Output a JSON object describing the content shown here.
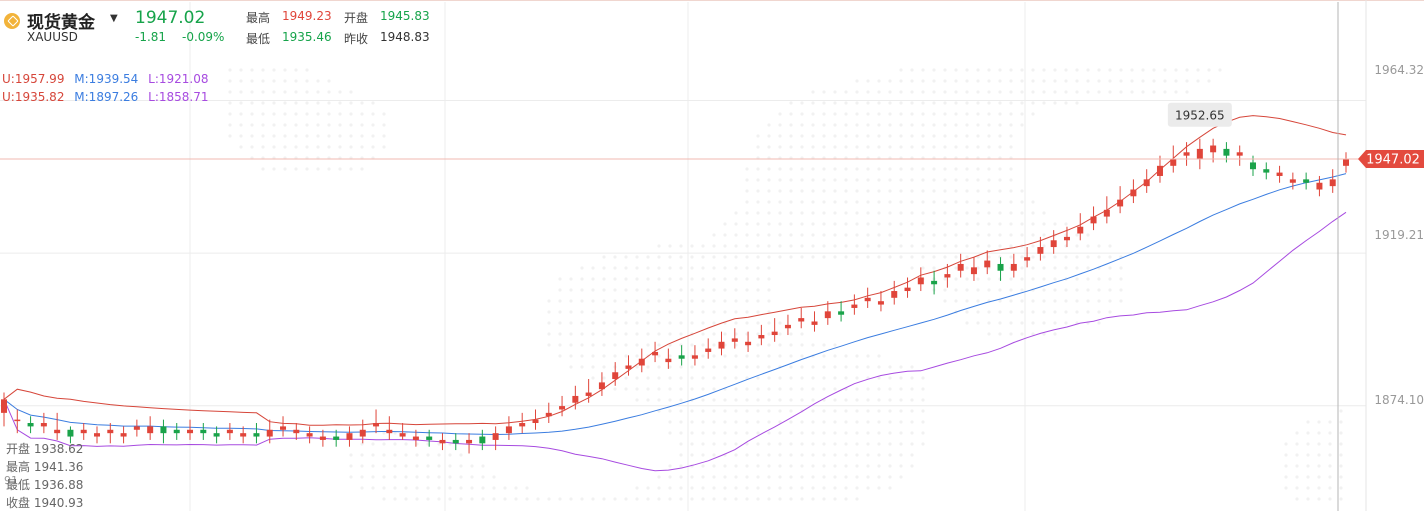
{
  "header": {
    "name": "现货黄金",
    "symbol": "XAUUSD",
    "price": "1947.02",
    "change": "-1.81",
    "change_pct": "-0.09%",
    "labels": {
      "high": "最高",
      "open": "开盘",
      "low": "最低",
      "prev_close": "昨收"
    },
    "high": "1949.23",
    "open": "1945.83",
    "low": "1935.46",
    "prev_close": "1948.83"
  },
  "boll_lines": [
    {
      "u": "U:1957.99",
      "m": "M:1939.54",
      "l": "L:1921.08"
    },
    {
      "u": "U:1935.82",
      "m": "M:1897.26",
      "l": "L:1858.71"
    }
  ],
  "ohlc_panel": {
    "open": "开盘 1938.62",
    "high": "最高 1941.36",
    "low": "最低 1936.88",
    "close": "收盘 1940.93",
    "extra": "91"
  },
  "colors": {
    "up": "#e0453a",
    "down": "#1aa34a",
    "upper_band": "#d6463a",
    "mid": "#3b7de0",
    "lower_band": "#a74be0",
    "label_bg": "#e34a3e"
  },
  "chart_data": {
    "type": "candlestick",
    "y_ticks": [
      1964.32,
      1919.21,
      1874.1
    ],
    "y_tick_labels": [
      "1964.32",
      "1919.21",
      "1874.10"
    ],
    "ylim": [
      1843.0,
      1994.0
    ],
    "current_price": 1947.02,
    "current_price_label": "1947.02",
    "peak_label": "1952.65",
    "candles": [
      [
        1872,
        1876,
        1868,
        1878
      ],
      [
        1870,
        1870,
        1866,
        1873
      ],
      [
        1869,
        1868,
        1866,
        1871
      ],
      [
        1868,
        1869,
        1866,
        1872
      ],
      [
        1866,
        1867,
        1864,
        1872
      ],
      [
        1867,
        1865,
        1863,
        1868
      ],
      [
        1866,
        1867,
        1864,
        1869
      ],
      [
        1865,
        1866,
        1863,
        1868
      ],
      [
        1866,
        1867,
        1863,
        1869
      ],
      [
        1865,
        1866,
        1863,
        1868
      ],
      [
        1867,
        1868,
        1865,
        1870
      ],
      [
        1866,
        1868,
        1864,
        1871
      ],
      [
        1868,
        1866,
        1863,
        1870
      ],
      [
        1867,
        1866,
        1864,
        1869
      ],
      [
        1866,
        1867,
        1864,
        1870
      ],
      [
        1867,
        1866,
        1864,
        1869
      ],
      [
        1866,
        1865,
        1863,
        1868
      ],
      [
        1866,
        1867,
        1864,
        1869
      ],
      [
        1865,
        1866,
        1863,
        1868
      ],
      [
        1866,
        1865,
        1863,
        1869
      ],
      [
        1865,
        1867,
        1863,
        1870
      ],
      [
        1867,
        1868,
        1865,
        1871
      ],
      [
        1866,
        1867,
        1864,
        1869
      ],
      [
        1865,
        1866,
        1863,
        1868
      ],
      [
        1864,
        1865,
        1862,
        1867
      ],
      [
        1865,
        1864,
        1862,
        1867
      ],
      [
        1864,
        1866,
        1862,
        1868
      ],
      [
        1865,
        1867,
        1863,
        1870
      ],
      [
        1868,
        1869,
        1866,
        1873
      ],
      [
        1866,
        1867,
        1864,
        1871
      ],
      [
        1865,
        1866,
        1864,
        1869
      ],
      [
        1864,
        1865,
        1862,
        1867
      ],
      [
        1865,
        1864,
        1862,
        1867
      ],
      [
        1863,
        1864,
        1861,
        1866
      ],
      [
        1864,
        1863,
        1861,
        1866
      ],
      [
        1863,
        1864,
        1860,
        1866
      ],
      [
        1865,
        1863,
        1861,
        1867
      ],
      [
        1864,
        1866,
        1861,
        1868
      ],
      [
        1866,
        1868,
        1864,
        1871
      ],
      [
        1868,
        1869,
        1866,
        1872
      ],
      [
        1869,
        1870,
        1867,
        1873
      ],
      [
        1871,
        1872,
        1869,
        1875
      ],
      [
        1873,
        1874,
        1871,
        1877
      ],
      [
        1875,
        1877,
        1873,
        1880
      ],
      [
        1877,
        1878,
        1875,
        1882
      ],
      [
        1879,
        1881,
        1877,
        1884
      ],
      [
        1882,
        1884,
        1880,
        1887
      ],
      [
        1885,
        1886,
        1883,
        1889
      ],
      [
        1886,
        1888,
        1884,
        1891
      ],
      [
        1889,
        1890,
        1887,
        1893
      ],
      [
        1887,
        1888,
        1885,
        1891
      ],
      [
        1889,
        1888,
        1886,
        1892
      ],
      [
        1888,
        1889,
        1886,
        1892
      ],
      [
        1890,
        1891,
        1888,
        1894
      ],
      [
        1891,
        1893,
        1889,
        1896
      ],
      [
        1893,
        1894,
        1891,
        1897
      ],
      [
        1892,
        1893,
        1890,
        1896
      ],
      [
        1894,
        1895,
        1892,
        1898
      ],
      [
        1895,
        1896,
        1893,
        1900
      ],
      [
        1897,
        1898,
        1895,
        1901
      ],
      [
        1899,
        1900,
        1897,
        1903
      ],
      [
        1898,
        1899,
        1896,
        1902
      ],
      [
        1900,
        1902,
        1898,
        1905
      ],
      [
        1902,
        1901,
        1899,
        1905
      ],
      [
        1903,
        1904,
        1901,
        1907
      ],
      [
        1905,
        1906,
        1903,
        1909
      ],
      [
        1904,
        1905,
        1902,
        1908
      ],
      [
        1906,
        1908,
        1904,
        1911
      ],
      [
        1908,
        1909,
        1906,
        1912
      ],
      [
        1910,
        1912,
        1908,
        1915
      ],
      [
        1911,
        1910,
        1907,
        1914
      ],
      [
        1912,
        1913,
        1909,
        1916
      ],
      [
        1914,
        1916,
        1912,
        1919
      ],
      [
        1913,
        1915,
        1911,
        1918
      ],
      [
        1915,
        1917,
        1913,
        1920
      ],
      [
        1916,
        1914,
        1911,
        1918
      ],
      [
        1914,
        1916,
        1912,
        1919
      ],
      [
        1917,
        1918,
        1915,
        1921
      ],
      [
        1919,
        1921,
        1917,
        1924
      ],
      [
        1921,
        1923,
        1919,
        1926
      ],
      [
        1923,
        1924,
        1921,
        1927
      ],
      [
        1925,
        1927,
        1923,
        1931
      ],
      [
        1928,
        1930,
        1926,
        1933
      ],
      [
        1930,
        1932,
        1928,
        1936
      ],
      [
        1933,
        1935,
        1931,
        1939
      ],
      [
        1936,
        1938,
        1934,
        1941
      ],
      [
        1939,
        1941,
        1937,
        1944
      ],
      [
        1942,
        1945,
        1940,
        1948
      ],
      [
        1945,
        1947,
        1943,
        1951
      ],
      [
        1948,
        1949,
        1945,
        1952
      ],
      [
        1947,
        1950,
        1944,
        1953
      ],
      [
        1949,
        1951,
        1946,
        1953
      ],
      [
        1950,
        1948,
        1946,
        1952
      ],
      [
        1948,
        1949,
        1945,
        1951
      ],
      [
        1946,
        1944,
        1942,
        1948
      ],
      [
        1944,
        1943,
        1941,
        1946
      ],
      [
        1942,
        1943,
        1940,
        1945
      ],
      [
        1940,
        1941,
        1938,
        1943
      ],
      [
        1941,
        1940,
        1938,
        1943
      ],
      [
        1938,
        1940,
        1936,
        1942
      ],
      [
        1939,
        1941,
        1937,
        1944
      ],
      [
        1945,
        1947,
        1943,
        1949
      ]
    ]
  }
}
